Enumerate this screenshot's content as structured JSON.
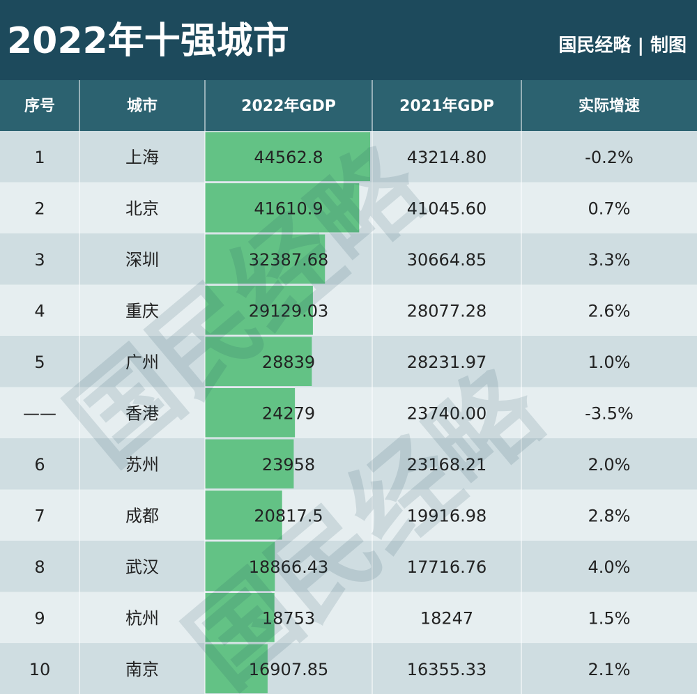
{
  "header": {
    "title": "2022年十强城市",
    "credit": "国民经略 | 制图"
  },
  "watermark": "国民经略",
  "table": {
    "columns": [
      "序号",
      "城市",
      "2022年GDP",
      "2021年GDP",
      "实际增速"
    ],
    "rows": [
      [
        "1",
        "上海",
        "44562.8",
        "43214.80",
        "-0.2%"
      ],
      [
        "2",
        "北京",
        "41610.9",
        "41045.60",
        "0.7%"
      ],
      [
        "3",
        "深圳",
        "32387.68",
        "30664.85",
        "3.3%"
      ],
      [
        "4",
        "重庆",
        "29129.03",
        "28077.28",
        "2.6%"
      ],
      [
        "5",
        "广州",
        "28839",
        "28231.97",
        "1.0%"
      ],
      [
        "——",
        "香港",
        "24279",
        "23740.00",
        "-3.5%"
      ],
      [
        "6",
        "苏州",
        "23958",
        "23168.21",
        "2.0%"
      ],
      [
        "7",
        "成都",
        "20817.5",
        "19916.98",
        "2.8%"
      ],
      [
        "8",
        "武汉",
        "18866.43",
        "17716.76",
        "4.0%"
      ],
      [
        "9",
        "杭州",
        "18753",
        "18247",
        "1.5%"
      ],
      [
        "10",
        "南京",
        "16907.85",
        "16355.33",
        "2.1%"
      ]
    ]
  }
}
